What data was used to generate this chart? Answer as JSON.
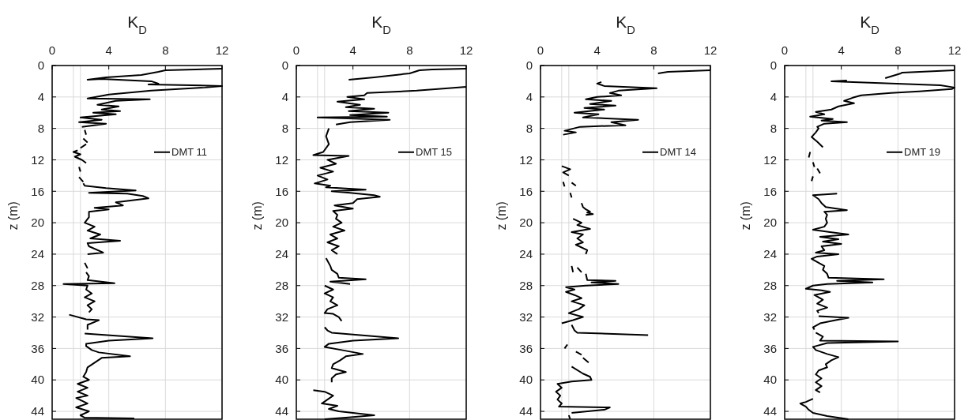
{
  "chart_data": [
    {
      "type": "line",
      "xlabel": "K$_{D}$",
      "ylabel": "z (m)",
      "xlim": [
        0,
        12
      ],
      "xticks": [
        0,
        4,
        8,
        12
      ],
      "ylim": [
        45,
        0
      ],
      "yticks": [
        0,
        4,
        8,
        12,
        16,
        20,
        24,
        28,
        32,
        36,
        40,
        44
      ],
      "grid": true,
      "legend": "right",
      "line_style": "solid",
      "ref_lines": [
        {
          "axis": "x",
          "value": 1.5,
          "color": "#d9d9d9"
        },
        {
          "axis": "x",
          "value": 2,
          "color": "#d9d9d9"
        }
      ],
      "orientation": "horizontal",
      "series": [
        {
          "name": "DMT 11",
          "color": "#000000",
          "values": [
            12,
            8,
            7.5,
            6.3,
            3.8,
            2.5,
            3.5,
            7,
            7.5,
            6.8,
            12,
            10.8,
            7,
            4,
            2.5,
            6.9,
            4.5,
            3.2,
            4.7,
            3.5,
            4.8,
            2.9,
            4.5,
            2,
            3.5,
            1.9,
            3.8,
            2.1,
            null,
            2.3,
            2.4,
            null,
            2.2,
            2.5,
            null,
            2.4,
            2.0,
            null,
            1.8,
            1.5,
            2.0,
            1.6,
            2.1,
            2.4,
            null,
            1.9,
            2.0,
            null,
            1.9,
            2.2,
            null,
            2.2,
            2.3,
            3.8,
            5.9,
            2.6,
            5.3,
            6.4,
            6.8,
            4.5,
            5.0,
            3.0,
            4.0,
            2.6,
            2.6,
            2.3,
            3.0,
            2.5,
            3.4,
            2.7,
            4.8,
            2.5,
            2.6,
            3.6,
            2.5,
            null,
            2.3,
            2.5,
            null,
            2.4,
            2.6,
            2.5,
            4.4,
            0.8,
            2.5,
            2.4,
            2.8,
            2.3,
            3.0,
            2.5,
            2.8,
            2.6,
            null,
            1.2,
            2.4,
            3.3,
            2.5,
            2.5,
            null,
            2.3,
            7.1,
            4.0,
            2.4,
            2.4,
            2.8,
            3.3,
            5.5,
            3.5,
            3.0,
            2.5,
            2.4,
            2.2,
            2.6,
            1.8,
            2.5,
            1.8,
            2.5,
            1.7,
            2.5,
            1.7,
            2.6,
            2.0,
            2.3,
            5.8
          ],
          "x": [
            0.4,
            0.6,
            0.8,
            1.2,
            1.5,
            1.8,
            1.7,
            2.0,
            2.3,
            2.4,
            2.6,
            2.8,
            3.2,
            3.7,
            4.2,
            4.3,
            4.5,
            5.0,
            5.2,
            5.6,
            5.8,
            6.0,
            6.2,
            6.6,
            6.9,
            7.2,
            7.4,
            7.8,
            null,
            8.2,
            8.8,
            null,
            9.3,
            9.8,
            null,
            10.0,
            10.5,
            null,
            10.8,
            11.0,
            11.3,
            11.6,
            12.0,
            12.4,
            null,
            12.9,
            13.5,
            null,
            14.2,
            14.8,
            null,
            15.0,
            15.3,
            15.6,
            15.9,
            16.2,
            16.3,
            16.6,
            16.9,
            17.4,
            17.8,
            18.1,
            18.3,
            18.6,
            19.3,
            20.0,
            20.5,
            21.0,
            21.5,
            22.0,
            22.3,
            22.6,
            23.0,
            23.8,
            24.0,
            null,
            25.1,
            25.8,
            null,
            26.3,
            26.8,
            27.3,
            27.7,
            27.8,
            28.0,
            28.5,
            29.0,
            29.5,
            30.0,
            30.5,
            31.0,
            31.4,
            null,
            31.7,
            32.3,
            32.4,
            33.0,
            33.6,
            null,
            34.1,
            34.7,
            35.0,
            35.4,
            35.7,
            36.2,
            36.5,
            37.0,
            37.2,
            37.8,
            38.4,
            39.0,
            39.6,
            40.0,
            40.5,
            41.0,
            41.5,
            42.0,
            42.3,
            43.0,
            43.5,
            44.0,
            44.5,
            44.8,
            44.9
          ]
        }
      ]
    },
    {
      "type": "line",
      "xlabel": "K$_{D}$",
      "ylabel": "z (m)",
      "xlim": [
        0,
        12
      ],
      "xticks": [
        0,
        4,
        8,
        12
      ],
      "ylim": [
        45,
        0
      ],
      "yticks": [
        0,
        4,
        8,
        12,
        16,
        20,
        24,
        28,
        32,
        36,
        40,
        44
      ],
      "grid": true,
      "legend": "right",
      "line_style": "solid",
      "ref_lines": [
        {
          "axis": "x",
          "value": 1.5,
          "color": "#d9d9d9"
        },
        {
          "axis": "x",
          "value": 2,
          "color": "#d9d9d9"
        }
      ],
      "orientation": "horizontal",
      "series": [
        {
          "name": "DMT 15",
          "color": "#000000",
          "values": [
            12,
            9.6,
            8.7,
            8.0,
            5.5,
            3.7,
            null,
            12,
            10,
            8.5,
            5,
            4.8,
            3.6,
            4.8,
            2.9,
            4.5,
            3.5,
            5.5,
            3.7,
            6.5,
            3.8,
            6.4,
            1.5,
            6.6,
            3.8,
            2.8,
            null,
            2.3,
            2.1,
            2.3,
            1.9,
            1.2,
            3.7,
            2.2,
            2.8,
            1.7,
            2.6,
            1.5,
            2.2,
            1.3,
            2.4,
            2.1,
            4.9,
            2.5,
            3.8,
            5.5,
            5.9,
            4.3,
            4.0,
            2.7,
            4.0,
            2.6,
            2.9,
            2.8,
            3.2,
            2.6,
            3.4,
            2.4,
            2.9,
            2.2,
            3.0,
            2.5,
            2.9,
            null,
            2.1,
            2.4,
            2.5,
            2.9,
            3.0,
            4.9,
            2.4,
            3.8,
            null,
            2.0,
            2.6,
            2.0,
            2.6,
            2.4,
            2.9,
            2.2,
            2.0,
            2.6,
            3.0,
            3.2,
            null,
            2.0,
            2.2,
            2.5,
            7.2,
            4.0,
            2.3,
            2.0,
            3.2,
            4.7,
            3.5,
            3.1,
            2.6,
            2.5,
            3.5,
            2.8,
            2.5,
            2.5,
            null,
            1.2,
            2.0,
            2.6,
            2.2,
            1.8,
            2.9,
            2.3,
            3.0,
            5.5,
            3.5,
            2.0
          ],
          "x": [
            0.4,
            0.5,
            0.6,
            1.0,
            1.5,
            1.8,
            null,
            2.7,
            3.0,
            3.2,
            3.5,
            3.8,
            4.0,
            4.3,
            4.6,
            5.0,
            5.3,
            5.5,
            5.8,
            6.0,
            6.3,
            6.5,
            6.6,
            6.9,
            7.2,
            7.5,
            null,
            8.0,
            9.0,
            10.0,
            11.0,
            11.4,
            11.5,
            12.0,
            12.5,
            13.0,
            13.5,
            14.0,
            14.5,
            15.0,
            15.3,
            15.5,
            15.8,
            16.0,
            16.2,
            16.5,
            16.7,
            17.0,
            17.5,
            17.8,
            18.2,
            18.5,
            19.0,
            19.5,
            20.0,
            20.5,
            21.0,
            21.5,
            22.0,
            22.5,
            23.0,
            23.5,
            24.0,
            null,
            24.5,
            25.5,
            26.0,
            26.5,
            27.0,
            27.2,
            27.5,
            27.8,
            null,
            28.0,
            28.5,
            29.0,
            29.5,
            30.0,
            30.5,
            31.0,
            31.5,
            31.6,
            32.0,
            32.5,
            null,
            33.3,
            33.7,
            34.0,
            34.7,
            35.0,
            35.4,
            35.8,
            36.2,
            36.7,
            37.0,
            37.5,
            38.0,
            38.5,
            39.0,
            39.3,
            39.8,
            40.3,
            null,
            41.3,
            41.5,
            42.0,
            42.5,
            43.0,
            43.3,
            43.7,
            44.0,
            44.5,
            44.8,
            45.0
          ]
        }
      ]
    },
    {
      "type": "line",
      "xlabel": "K$_{D}$",
      "ylabel": "z (m)",
      "xlim": [
        0,
        12
      ],
      "xticks": [
        0,
        4,
        8,
        12
      ],
      "ylim": [
        45,
        0
      ],
      "yticks": [
        0,
        4,
        8,
        12,
        16,
        20,
        24,
        28,
        32,
        36,
        40,
        44
      ],
      "grid": true,
      "legend": "right",
      "line_style": "solid",
      "ref_lines": [
        {
          "axis": "x",
          "value": 1.5,
          "color": "#d9d9d9"
        },
        {
          "axis": "x",
          "value": 2,
          "color": "#d9d9d9"
        }
      ],
      "orientation": "horizontal",
      "series": [
        {
          "name": "DMT 14",
          "color": "#000000",
          "values": [
            12,
            9,
            8.3,
            null,
            4.3,
            4.0,
            4.5,
            8.2,
            5.5,
            4.9,
            5.7,
            4.0,
            3.2,
            5,
            3.5,
            5.3,
            3.1,
            4.5,
            2.4,
            4.1,
            3.0,
            6.9,
            5.0,
            6.0,
            2.8,
            1.7,
            2.5,
            1.6,
            null,
            1.5,
            2.1,
            1.6,
            2.0,
            null,
            1.6,
            1.7,
            null,
            2.2,
            2.5,
            null,
            2.1,
            2.2,
            null,
            2.9,
            3.0,
            3.2,
            3.5,
            3.3,
            3.7,
            3.2,
            null,
            2.3,
            2.9,
            2.6,
            3.5,
            2.2,
            3.0,
            2.6,
            3.0,
            2.5,
            3.3,
            3.2,
            null,
            2.2,
            2.3,
            null,
            2.6,
            2.9,
            null,
            3.2,
            3.3,
            5.3,
            3.6,
            5.5,
            3.2,
            1.8,
            2.4,
            1.8,
            2.4,
            2.9,
            2.2,
            3.1,
            2.7,
            2.0,
            3.0,
            2.3,
            1.5,
            null,
            2.2,
            2.4,
            2.6,
            7.6,
            null,
            1.9,
            1.7,
            null,
            2.5,
            2.9,
            null,
            3.0,
            3.4,
            null,
            2.2,
            3.0,
            3.5,
            3.6,
            2.2,
            1.2,
            1.5,
            1.1,
            1.4,
            1.2,
            1.5,
            1.3,
            4.9,
            4.5,
            2.2,
            null,
            2.0,
            2.1
          ],
          "x": [
            0.6,
            0.8,
            1.0,
            null,
            2.1,
            2.3,
            2.6,
            2.9,
            3.2,
            3.5,
            3.8,
            4.0,
            4.3,
            4.5,
            4.9,
            5.1,
            5.4,
            5.6,
            6.0,
            6.2,
            6.6,
            6.9,
            7.2,
            7.6,
            7.8,
            8.3,
            8.5,
            8.8,
            null,
            12.8,
            13.2,
            13.6,
            14.0,
            null,
            14.8,
            15.4,
            null,
            14.9,
            15.3,
            null,
            16.2,
            16.8,
            null,
            17.5,
            18.0,
            18.3,
            18.6,
            18.7,
            18.9,
            19.0,
            null,
            19.5,
            20.0,
            20.3,
            20.8,
            21.2,
            21.5,
            22.0,
            22.5,
            22.8,
            23.5,
            24.0,
            null,
            25.5,
            26.3,
            null,
            25.7,
            26.3,
            null,
            26.5,
            27.3,
            27.4,
            27.6,
            27.8,
            28.0,
            28.2,
            28.5,
            28.8,
            29.2,
            29.6,
            30.0,
            30.5,
            31.0,
            31.5,
            32.0,
            32.4,
            32.8,
            null,
            33.0,
            33.7,
            34.0,
            34.3,
            null,
            35.5,
            36.0,
            null,
            36.4,
            36.8,
            null,
            37.2,
            37.8,
            null,
            38.3,
            39.2,
            39.6,
            40.0,
            40.2,
            40.5,
            41.0,
            41.5,
            42.0,
            42.5,
            43.0,
            43.4,
            43.5,
            43.8,
            44.2,
            null,
            44.5,
            45.0
          ]
        }
      ]
    },
    {
      "type": "line",
      "xlabel": "K$_{D}$",
      "ylabel": "z (m)",
      "xlim": [
        0,
        12
      ],
      "xticks": [
        0,
        4,
        8,
        12
      ],
      "ylim": [
        45,
        0
      ],
      "yticks": [
        0,
        4,
        8,
        12,
        16,
        20,
        24,
        28,
        32,
        36,
        40,
        44
      ],
      "grid": true,
      "legend": "right",
      "line_style": "solid",
      "ref_lines": [
        {
          "axis": "x",
          "value": 1.5,
          "color": "#d9d9d9"
        },
        {
          "axis": "x",
          "value": 2,
          "color": "#d9d9d9"
        }
      ],
      "orientation": "horizontal",
      "series": [
        {
          "name": "DMT 19",
          "color": "#000000",
          "values": [
            12,
            8.3,
            8.2,
            7.1,
            null,
            4.4,
            3.3,
            11,
            12,
            11.8,
            9.5,
            7.5,
            5.4,
            4.8,
            4.2,
            4.9,
            3.8,
            3.3,
            2.2,
            2.8,
            1.8,
            3.4,
            2.6,
            4.4,
            2.8,
            2.3,
            2.4,
            2.2,
            1.9,
            2.3,
            2.7,
            null,
            1.8,
            1.7,
            null,
            2.0,
            2.1,
            null,
            2.3,
            2.5,
            null,
            2.0,
            1.9,
            null,
            3.7,
            2.0,
            2.4,
            2.6,
            2.9,
            4.4,
            2.8,
            3.0,
            2.9,
            3.0,
            2.8,
            2.0,
            3.2,
            4.5,
            2.5,
            3.8,
            2.7,
            4.0,
            2.6,
            2.8,
            2.2,
            3.8,
            2.3,
            1.9,
            2.3,
            2.8,
            2.7,
            3.0,
            3.1,
            7.0,
            3.7,
            6.2,
            3.0,
            2.0,
            1.5,
            2.6,
            3.2,
            2.1,
            2.7,
            2.3,
            3.0,
            2.3,
            2.4,
            null,
            2.4,
            4.5,
            3.6,
            2.5,
            2.0,
            2.1,
            null,
            2.2,
            2.7,
            2.5,
            8.0,
            3.0,
            2.0,
            2.2,
            3.0,
            3.8,
            3.3,
            2.9,
            3.0,
            2.4,
            2.2,
            2.6,
            2.2,
            2.6,
            2.2,
            2.5,
            null,
            2.0,
            1.5,
            1.1,
            1.5,
            1.7,
            2.0,
            3.0,
            4.5
          ],
          "x": [
            0.6,
            0.9,
            1.0,
            1.6,
            null,
            1.9,
            2.0,
            2.5,
            2.8,
            3.0,
            3.3,
            3.5,
            3.8,
            4.1,
            4.5,
            4.8,
            5.2,
            5.6,
            5.9,
            6.2,
            6.5,
            6.8,
            7.0,
            7.2,
            7.4,
            7.8,
            8.0,
            8.5,
            9.1,
            9.7,
            10.4,
            null,
            11.0,
            11.7,
            null,
            12.3,
            12.9,
            null,
            13.1,
            13.7,
            null,
            14.1,
            14.7,
            null,
            16.3,
            16.5,
            17.0,
            17.5,
            18.0,
            18.4,
            18.6,
            19.0,
            19.5,
            20.0,
            20.5,
            20.9,
            21.2,
            21.5,
            21.8,
            22.1,
            22.4,
            22.7,
            23.0,
            23.5,
            23.8,
            24.0,
            24.3,
            24.6,
            25.0,
            25.5,
            26.0,
            26.5,
            27.0,
            27.2,
            27.4,
            27.6,
            27.8,
            28.0,
            28.4,
            28.6,
            28.8,
            29.2,
            29.8,
            30.3,
            30.8,
            31.2,
            31.5,
            null,
            31.9,
            32.1,
            32.4,
            32.8,
            33.3,
            33.6,
            null,
            34.0,
            34.5,
            35.0,
            35.1,
            35.3,
            35.8,
            36.2,
            36.7,
            37.1,
            37.5,
            38.0,
            38.4,
            38.8,
            39.3,
            39.8,
            40.3,
            40.8,
            41.3,
            41.6,
            null,
            42.4,
            42.8,
            43.0,
            43.4,
            43.8,
            44.2,
            44.6,
            45.0
          ]
        }
      ]
    }
  ]
}
